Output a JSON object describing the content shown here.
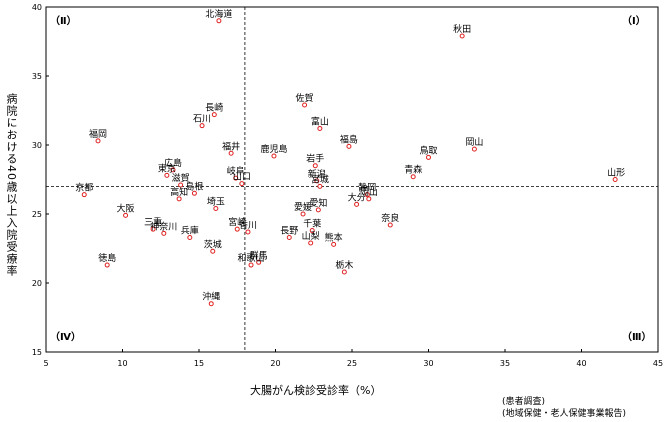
{
  "chart_data": {
    "type": "scatter",
    "xlabel": "大腸がん検診受診率（%）",
    "ylabel": "病院における40歳以上入院受療率",
    "xlim": [
      5,
      45
    ],
    "ylim": [
      15,
      40
    ],
    "xticks": [
      5,
      10,
      15,
      20,
      25,
      30,
      35,
      40,
      45
    ],
    "yticks": [
      15,
      20,
      25,
      30,
      35,
      40
    ],
    "reference_lines": {
      "x": 18,
      "y": 27
    },
    "quadrant_labels": {
      "top_left": "（Ⅱ）",
      "top_right": "（Ⅰ）",
      "bottom_left": "（Ⅳ）",
      "bottom_right": "（Ⅲ）"
    },
    "source_notes": [
      "(患者調査)",
      "(地域保健・老人保健事業報告)"
    ],
    "marker_color": "#e02020",
    "points": [
      {
        "label": "北海道",
        "x": 16.3,
        "y": 39.0
      },
      {
        "label": "秋田",
        "x": 32.2,
        "y": 37.9
      },
      {
        "label": "佐賀",
        "x": 21.9,
        "y": 32.9
      },
      {
        "label": "長崎",
        "x": 16.0,
        "y": 32.2
      },
      {
        "label": "石川",
        "x": 15.2,
        "y": 31.4
      },
      {
        "label": "富山",
        "x": 22.9,
        "y": 31.2
      },
      {
        "label": "福岡",
        "x": 8.4,
        "y": 30.3
      },
      {
        "label": "福井",
        "x": 17.1,
        "y": 29.4
      },
      {
        "label": "鹿児島",
        "x": 19.9,
        "y": 29.2
      },
      {
        "label": "福島",
        "x": 24.8,
        "y": 29.9
      },
      {
        "label": "岡山",
        "x": 33.0,
        "y": 29.7
      },
      {
        "label": "鳥取",
        "x": 30.0,
        "y": 29.1
      },
      {
        "label": "岩手",
        "x": 22.6,
        "y": 28.5
      },
      {
        "label": "広島",
        "x": 13.3,
        "y": 28.2
      },
      {
        "label": "青森",
        "x": 29.0,
        "y": 27.7
      },
      {
        "label": "東京",
        "x": 12.9,
        "y": 27.8
      },
      {
        "label": "岐阜",
        "x": 17.4,
        "y": 27.6
      },
      {
        "label": "新潟",
        "x": 22.7,
        "y": 27.4
      },
      {
        "label": "山口",
        "x": 17.8,
        "y": 27.2
      },
      {
        "label": "滋賀",
        "x": 13.8,
        "y": 27.1
      },
      {
        "label": "宮城",
        "x": 22.9,
        "y": 27.0
      },
      {
        "label": "山形",
        "x": 42.2,
        "y": 27.5
      },
      {
        "label": "京都",
        "x": 7.5,
        "y": 26.4
      },
      {
        "label": "静岡",
        "x": 26.0,
        "y": 26.4
      },
      {
        "label": "岡山",
        "x": 26.1,
        "y": 26.1
      },
      {
        "label": "島根",
        "x": 14.7,
        "y": 26.5
      },
      {
        "label": "高知",
        "x": 13.7,
        "y": 26.1
      },
      {
        "label": "大分",
        "x": 25.3,
        "y": 25.7
      },
      {
        "label": "埼玉",
        "x": 16.1,
        "y": 25.4
      },
      {
        "label": "愛媛",
        "x": 21.8,
        "y": 25.0
      },
      {
        "label": "愛知",
        "x": 22.8,
        "y": 25.3
      },
      {
        "label": "大阪",
        "x": 10.2,
        "y": 24.9
      },
      {
        "label": "奈良",
        "x": 27.5,
        "y": 24.2
      },
      {
        "label": "宮崎",
        "x": 17.5,
        "y": 23.9
      },
      {
        "label": "香川",
        "x": 18.2,
        "y": 23.7
      },
      {
        "label": "三重",
        "x": 12.0,
        "y": 23.9
      },
      {
        "label": "千葉",
        "x": 22.4,
        "y": 23.8
      },
      {
        "label": "長野",
        "x": 20.9,
        "y": 23.3
      },
      {
        "label": "兵庫",
        "x": 14.4,
        "y": 23.3
      },
      {
        "label": "神奈川",
        "x": 12.7,
        "y": 23.6
      },
      {
        "label": "熊本",
        "x": 23.8,
        "y": 22.8
      },
      {
        "label": "山梨",
        "x": 22.3,
        "y": 22.9
      },
      {
        "label": "茨城",
        "x": 15.9,
        "y": 22.3
      },
      {
        "label": "群馬",
        "x": 18.9,
        "y": 21.5
      },
      {
        "label": "和歌山",
        "x": 18.4,
        "y": 21.3
      },
      {
        "label": "徳島",
        "x": 9.0,
        "y": 21.3
      },
      {
        "label": "栃木",
        "x": 24.5,
        "y": 20.8
      },
      {
        "label": "沖縄",
        "x": 15.8,
        "y": 18.5
      }
    ]
  }
}
